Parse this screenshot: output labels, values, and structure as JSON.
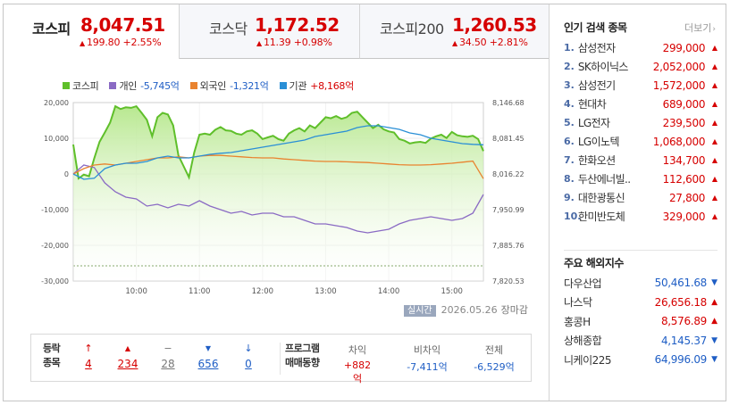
{
  "tabs": [
    {
      "name": "코스피",
      "price": "8,047.51",
      "change": "199.80 +2.55%",
      "direction": "up"
    },
    {
      "name": "코스닥",
      "price": "1,172.52",
      "change": "11.39 +0.98%",
      "direction": "up"
    },
    {
      "name": "코스피200",
      "price": "1,260.53",
      "change": "34.50 +2.81%",
      "direction": "up"
    }
  ],
  "legend": [
    {
      "name": "코스피",
      "value": "",
      "color": "#5fbf2a"
    },
    {
      "name": "개인",
      "value": "-5,745억",
      "color": "#8a6ac4"
    },
    {
      "name": "외국인",
      "value": "-1,321억",
      "color": "#e9832f"
    },
    {
      "name": "기관",
      "value": "+8,168억",
      "color": "#2a8fd6"
    }
  ],
  "chart_data": {
    "type": "line",
    "x_ticks": [
      "10:00",
      "11:00",
      "12:00",
      "13:00",
      "14:00",
      "15:00"
    ],
    "x_range": [
      "09:00",
      "15:30"
    ],
    "y_left_ticks": [
      "20,000",
      "10,000",
      "0",
      "-10,000",
      "-20,000",
      "-30,000"
    ],
    "y_left_range": [
      -30000,
      20000
    ],
    "y_right_ticks": [
      "8,146.68",
      "8,081.45",
      "8,016.22",
      "7,950.99",
      "7,885.76",
      "7,820.53"
    ],
    "y_right_range": [
      7820.53,
      8146.68
    ],
    "series": [
      {
        "name": "코스피",
        "axis": "right",
        "color": "#5fbf2a",
        "x": [
          "09:00",
          "09:05",
          "09:10",
          "09:15",
          "09:20",
          "09:25",
          "09:30",
          "09:35",
          "09:40",
          "09:45",
          "09:50",
          "09:55",
          "10:00",
          "10:05",
          "10:10",
          "10:15",
          "10:20",
          "10:25",
          "10:30",
          "10:35",
          "10:40",
          "10:45",
          "10:50",
          "10:55",
          "11:00",
          "11:05",
          "11:10",
          "11:15",
          "11:20",
          "11:25",
          "11:30",
          "11:35",
          "11:40",
          "11:45",
          "11:50",
          "11:55",
          "12:00",
          "12:05",
          "12:10",
          "12:15",
          "12:20",
          "12:25",
          "12:30",
          "12:35",
          "12:40",
          "12:45",
          "12:50",
          "12:55",
          "13:00",
          "13:05",
          "13:10",
          "13:15",
          "13:20",
          "13:25",
          "13:30",
          "13:35",
          "13:40",
          "13:45",
          "13:50",
          "13:55",
          "14:00",
          "14:05",
          "14:10",
          "14:15",
          "14:20",
          "14:25",
          "14:30",
          "14:35",
          "14:40",
          "14:45",
          "14:50",
          "14:55",
          "15:00",
          "15:05",
          "15:10",
          "15:15",
          "15:20",
          "15:25",
          "15:30"
        ],
        "values": [
          8070,
          8008,
          8015,
          8012,
          8045,
          8075,
          8092,
          8110,
          8140,
          8135,
          8138,
          8137,
          8140,
          8128,
          8115,
          8085,
          8120,
          8128,
          8125,
          8105,
          8050,
          8030,
          8010,
          8055,
          8088,
          8090,
          8088,
          8097,
          8102,
          8096,
          8095,
          8090,
          8088,
          8094,
          8096,
          8090,
          8080,
          8083,
          8086,
          8080,
          8077,
          8090,
          8096,
          8100,
          8094,
          8105,
          8100,
          8110,
          8120,
          8118,
          8122,
          8117,
          8120,
          8128,
          8130,
          8120,
          8110,
          8100,
          8106,
          8098,
          8094,
          8092,
          8080,
          8077,
          8072,
          8074,
          8075,
          8073,
          8081,
          8085,
          8088,
          8082,
          8093,
          8087,
          8085,
          8084,
          8086,
          8080,
          8058
        ]
      },
      {
        "name": "개인",
        "axis": "left",
        "color": "#8a6ac4",
        "x": [
          "09:00",
          "09:10",
          "09:20",
          "09:30",
          "09:40",
          "09:50",
          "10:00",
          "10:10",
          "10:20",
          "10:30",
          "10:40",
          "10:50",
          "11:00",
          "11:10",
          "11:20",
          "11:30",
          "11:40",
          "11:50",
          "12:00",
          "12:10",
          "12:20",
          "12:30",
          "12:40",
          "12:50",
          "13:00",
          "13:10",
          "13:20",
          "13:30",
          "13:40",
          "13:50",
          "14:00",
          "14:10",
          "14:20",
          "14:30",
          "14:40",
          "14:50",
          "15:00",
          "15:10",
          "15:20",
          "15:30"
        ],
        "values": [
          0,
          2500,
          1800,
          -2500,
          -5000,
          -6500,
          -7000,
          -9000,
          -8500,
          -9500,
          -8500,
          -9000,
          -7500,
          -9000,
          -10000,
          -11000,
          -10500,
          -11500,
          -11000,
          -11000,
          -12000,
          -12000,
          -13000,
          -14000,
          -14000,
          -14500,
          -15000,
          -16000,
          -16500,
          -16000,
          -15500,
          -14000,
          -13000,
          -12500,
          -12000,
          -12500,
          -13000,
          -12500,
          -11000,
          -5745
        ]
      },
      {
        "name": "외국인",
        "axis": "left",
        "color": "#e9832f",
        "x": [
          "09:00",
          "09:10",
          "09:20",
          "09:30",
          "09:40",
          "09:50",
          "10:00",
          "10:10",
          "10:20",
          "10:30",
          "10:40",
          "10:50",
          "11:00",
          "11:10",
          "11:20",
          "11:30",
          "11:40",
          "11:50",
          "12:00",
          "12:10",
          "12:20",
          "12:30",
          "12:40",
          "12:50",
          "13:00",
          "13:10",
          "13:20",
          "13:30",
          "13:40",
          "13:50",
          "14:00",
          "14:10",
          "14:20",
          "14:30",
          "14:40",
          "14:50",
          "15:00",
          "15:10",
          "15:20",
          "15:30"
        ],
        "values": [
          0,
          1500,
          2500,
          2800,
          2500,
          3000,
          3500,
          4000,
          4500,
          4500,
          4800,
          4500,
          5000,
          5200,
          5200,
          5000,
          4800,
          4600,
          4500,
          4500,
          4200,
          4000,
          3800,
          3600,
          3500,
          3500,
          3400,
          3300,
          3200,
          3000,
          2800,
          2600,
          2500,
          2500,
          2600,
          2800,
          3000,
          3300,
          3600,
          -1321
        ]
      },
      {
        "name": "기관",
        "axis": "left",
        "color": "#2a8fd6",
        "x": [
          "09:00",
          "09:10",
          "09:20",
          "09:30",
          "09:40",
          "09:50",
          "10:00",
          "10:10",
          "10:20",
          "10:30",
          "10:40",
          "10:50",
          "11:00",
          "11:10",
          "11:20",
          "11:30",
          "11:40",
          "11:50",
          "12:00",
          "12:10",
          "12:20",
          "12:30",
          "12:40",
          "12:50",
          "13:00",
          "13:10",
          "13:20",
          "13:30",
          "13:40",
          "13:50",
          "14:00",
          "14:10",
          "14:20",
          "14:30",
          "14:40",
          "14:50",
          "15:00",
          "15:10",
          "15:20",
          "15:30"
        ],
        "values": [
          0,
          -1500,
          -1200,
          1500,
          2500,
          3000,
          3000,
          3500,
          4500,
          5000,
          4500,
          4500,
          5000,
          5500,
          5800,
          6000,
          6500,
          7000,
          7500,
          8000,
          8500,
          9000,
          9500,
          10500,
          11000,
          11500,
          12000,
          13000,
          13500,
          13500,
          13000,
          12500,
          11500,
          11000,
          10000,
          9500,
          9000,
          8500,
          8300,
          8168
        ]
      }
    ]
  },
  "timestamp": {
    "badge": "실시간",
    "date": "2026.05.26",
    "status": "장마감"
  },
  "breadth": {
    "label_line1": "등락",
    "label_line2": "종목",
    "items": [
      {
        "icon": "↑",
        "value": "4",
        "color": "red"
      },
      {
        "icon": "▲",
        "value": "234",
        "color": "red"
      },
      {
        "icon": "−",
        "value": "28",
        "color": "gray"
      },
      {
        "icon": "▼",
        "value": "656",
        "color": "blue"
      },
      {
        "icon": "↓",
        "value": "0",
        "color": "blue"
      }
    ]
  },
  "program": {
    "label_line1": "프로그램",
    "label_line2": "매매동향",
    "items": [
      {
        "header": "차익",
        "value": "+882억"
      },
      {
        "header": "비차익",
        "value": "-7,411억"
      },
      {
        "header": "전체",
        "value": "-6,529억"
      }
    ]
  },
  "popular": {
    "title": "인기 검색 종목",
    "more": "더보기",
    "items": [
      {
        "rank": "1.",
        "name": "삼성전자",
        "price": "299,000"
      },
      {
        "rank": "2.",
        "name": "SK하이닉스",
        "price": "2,052,000"
      },
      {
        "rank": "3.",
        "name": "삼성전기",
        "price": "1,572,000"
      },
      {
        "rank": "4.",
        "name": "현대차",
        "price": "689,000"
      },
      {
        "rank": "5.",
        "name": "LG전자",
        "price": "239,500"
      },
      {
        "rank": "6.",
        "name": "LG이노텍",
        "price": "1,068,000"
      },
      {
        "rank": "7.",
        "name": "한화오션",
        "price": "134,700"
      },
      {
        "rank": "8.",
        "name": "두산에너빌..",
        "price": "112,600"
      },
      {
        "rank": "9.",
        "name": "대한광통신",
        "price": "27,800"
      },
      {
        "rank": "10.",
        "name": "한미반도체",
        "price": "329,000"
      }
    ]
  },
  "world": {
    "title": "주요 해외지수",
    "items": [
      {
        "name": "다우산업",
        "value": "50,461.68",
        "direction": "down"
      },
      {
        "name": "나스닥",
        "value": "26,656.18",
        "direction": "up"
      },
      {
        "name": "홍콩H",
        "value": "8,576.89",
        "direction": "up"
      },
      {
        "name": "상해종합",
        "value": "4,145.37",
        "direction": "down"
      },
      {
        "name": "니케이225",
        "value": "64,996.09",
        "direction": "down"
      }
    ]
  }
}
